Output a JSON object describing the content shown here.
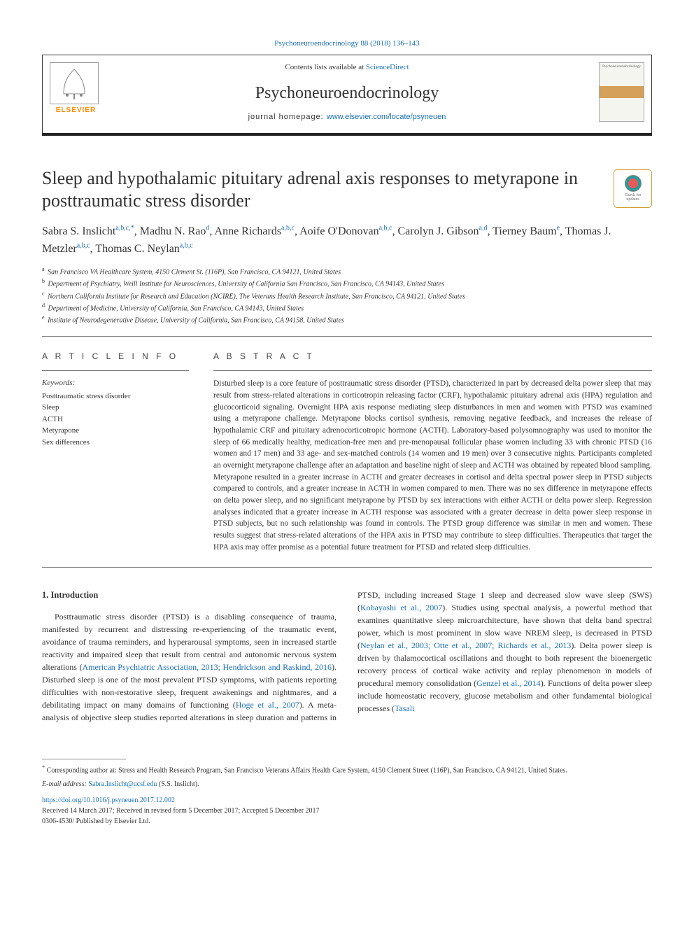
{
  "colors": {
    "link": "#1a6fb5",
    "text": "#333333",
    "rule": "#777777",
    "elsevier_orange": "#ff8a00",
    "background": "#ffffff"
  },
  "typography": {
    "body_font": "Georgia, 'Times New Roman', serif",
    "ui_font": "Arial, sans-serif",
    "title_fontsize_pt": 20,
    "journal_fontsize_pt": 18,
    "authors_fontsize_pt": 12,
    "abstract_fontsize_pt": 9,
    "body_fontsize_pt": 9
  },
  "header": {
    "citation": "Psychoneuroendocrinology 88 (2018) 136–143",
    "contents_prefix": "Contents lists available at ",
    "contents_link": "ScienceDirect",
    "journal_name": "Psychoneuroendocrinology",
    "homepage_prefix": "journal homepage: ",
    "homepage_url": "www.elsevier.com/locate/psyneuen",
    "elsevier_label": "ELSEVIER",
    "cover_caption": "Psychoneuroendocrinology"
  },
  "updates_badge": {
    "line1": "Check for",
    "line2": "updates"
  },
  "article": {
    "title": "Sleep and hypothalamic pituitary adrenal axis responses to metyrapone in posttraumatic stress disorder",
    "authors_html": "Sabra S. Inslicht<sup><a>a</a>,<a>b</a>,<a>c</a>,*</sup>, Madhu N. Rao<sup><a>d</a></sup>, Anne Richards<sup><a>a</a>,<a>b</a>,<a>c</a></sup>, Aoife O'Donovan<sup><a>a</a>,<a>b</a>,<a>c</a></sup>, Carolyn J. Gibson<sup><a>a</a>,<a>d</a></sup>, Tierney Baum<sup><a>e</a></sup>, Thomas J. Metzler<sup><a>a</a>,<a>b</a>,<a>c</a></sup>, Thomas C. Neylan<sup><a>a</a>,<a>b</a>,<a>c</a></sup>",
    "affiliations": [
      {
        "sup": "a",
        "text": "San Francisco VA Healthcare System, 4150 Clement St. (116P), San Francisco, CA 94121, United States"
      },
      {
        "sup": "b",
        "text": "Department of Psychiatry, Weill Institute for Neurosciences, University of California San Francisco, San Francisco, CA 94143, United States"
      },
      {
        "sup": "c",
        "text": "Northern California Institute for Research and Education (NCIRE), The Veterans Health Research Institute, San Francisco, CA 94121, United States"
      },
      {
        "sup": "d",
        "text": "Department of Medicine, University of California, San Francisco, CA 94143, United States"
      },
      {
        "sup": "e",
        "text": "Institute of Neurodegenerative Disease, University of California, San Francisco, CA 94158, United States"
      }
    ]
  },
  "info": {
    "section_label": "A R T I C L E  I N F O",
    "keywords_label": "Keywords:",
    "keywords": [
      "Posttraumatic stress disorder",
      "Sleep",
      "ACTH",
      "Metyrapone",
      "Sex differences"
    ]
  },
  "abstract": {
    "section_label": "A B S T R A C T",
    "text": "Disturbed sleep is a core feature of posttraumatic stress disorder (PTSD), characterized in part by decreased delta power sleep that may result from stress-related alterations in corticotropin releasing factor (CRF), hypothalamic pituitary adrenal axis (HPA) regulation and glucocorticoid signaling. Overnight HPA axis response mediating sleep disturbances in men and women with PTSD was examined using a metyrapone challenge. Metyrapone blocks cortisol synthesis, removing negative feedback, and increases the release of hypothalamic CRF and pituitary adrenocorticotropic hormone (ACTH). Laboratory-based polysomnography was used to monitor the sleep of 66 medically healthy, medication-free men and pre-menopausal follicular phase women including 33 with chronic PTSD (16 women and 17 men) and 33 age- and sex-matched controls (14 women and 19 men) over 3 consecutive nights. Participants completed an overnight metyrapone challenge after an adaptation and baseline night of sleep and ACTH was obtained by repeated blood sampling. Metyrapone resulted in a greater increase in ACTH and greater decreases in cortisol and delta spectral power sleep in PTSD subjects compared to controls, and a greater increase in ACTH in women compared to men. There was no sex difference in metyrapone effects on delta power sleep, and no significant metyrapone by PTSD by sex interactions with either ACTH or delta power sleep. Regression analyses indicated that a greater increase in ACTH response was associated with a greater decrease in delta power sleep response in PTSD subjects, but no such relationship was found in controls. The PTSD group difference was similar in men and women. These results suggest that stress-related alterations of the HPA axis in PTSD may contribute to sleep difficulties. Therapeutics that target the HPA axis may offer promise as a potential future treatment for PTSD and related sleep difficulties."
  },
  "body": {
    "section_number": "1.",
    "section_title": "Introduction",
    "para1_pre": "Posttraumatic stress disorder (PTSD) is a disabling consequence of trauma, manifested by recurrent and distressing re-experiencing of the traumatic event, avoidance of trauma reminders, and hyperarousal symptoms, seen in increased startle reactivity and impaired sleep that result from central and autonomic nervous system alterations (",
    "para1_ref1": "American Psychiatric Association, 2013; Hendrickson and Raskind, 2016",
    "para1_mid": "). Disturbed sleep is one of the most prevalent PTSD symptoms, with patients reporting difficulties with non-restorative sleep, frequent awakenings and nightmares, and a debilitating impact on many domains of functioning (",
    "para1_ref2": "Hoge et al., 2007",
    "para1_post": "). A meta-analysis of objective ",
    "para2_pre": "sleep studies reported alterations in sleep duration and patterns in PTSD, including increased Stage 1 sleep and decreased slow wave sleep (SWS) (",
    "para2_ref1": "Kobayashi et al., 2007",
    "para2_mid1": "). Studies using spectral analysis, a powerful method that examines quantitative sleep microarchitecture, have shown that delta band spectral power, which is most prominent in slow wave NREM sleep, is decreased in PTSD (",
    "para2_ref2": "Neylan et al., 2003; Otte et al., 2007; Richards et al., 2013",
    "para2_mid2": "). Delta power sleep is driven by thalamocortical oscillations and thought to both represent the bioenergetic recovery process of cortical wake activity and replay phenomenon in models of procedural memory consolidation (",
    "para2_ref3": "Genzel et al., 2014",
    "para2_mid3": "). Functions of delta power sleep include homeostatic recovery, glucose metabolism and other fundamental biological processes (",
    "para2_ref4": "Tasali"
  },
  "footnotes": {
    "corr_marker": "*",
    "corr_text": "Corresponding author at: Stress and Health Research Program, San Francisco Veterans Affairs Health Care System, 4150 Clement Street (116P), San Francisco, CA 94121, United States.",
    "email_label": "E-mail address: ",
    "email": "Sabra.Inslicht@ucsf.edu",
    "email_suffix": " (S.S. Inslicht).",
    "doi": "https://doi.org/10.1016/j.psyneuen.2017.12.002",
    "received": "Received 14 March 2017; Received in revised form 5 December 2017; Accepted 5 December 2017",
    "copyright": "0306-4530/ Published by Elsevier Ltd."
  }
}
